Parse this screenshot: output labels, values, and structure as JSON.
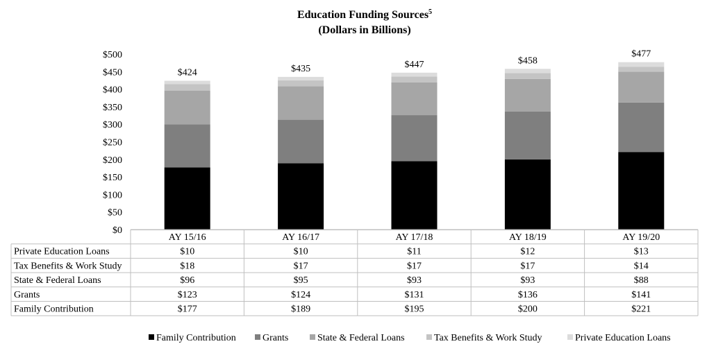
{
  "chart_data": {
    "type": "bar",
    "stacked": true,
    "title": "Education Funding Sources",
    "title_superscript": "5",
    "subtitle": "(Dollars in Billions)",
    "categories": [
      "AY 15/16",
      "AY 16/17",
      "AY 17/18",
      "AY 18/19",
      "AY 19/20"
    ],
    "ylim": [
      0,
      500
    ],
    "yticks": [
      0,
      50,
      100,
      150,
      200,
      250,
      300,
      350,
      400,
      450,
      500
    ],
    "ytick_labels": [
      "$0",
      "$50",
      "$100",
      "$150",
      "$200",
      "$250",
      "$300",
      "$350",
      "$400",
      "$450",
      "$500"
    ],
    "totals": [
      424,
      435,
      447,
      458,
      477
    ],
    "total_labels": [
      "$424",
      "$435",
      "$447",
      "$458",
      "$477"
    ],
    "grid": false,
    "legend_position": "bottom",
    "series": [
      {
        "name": "Family Contribution",
        "color": "#000000",
        "values": [
          177,
          189,
          195,
          200,
          221
        ],
        "labels": [
          "$177",
          "$189",
          "$195",
          "$200",
          "$221"
        ]
      },
      {
        "name": "Grants",
        "color": "#7f7f7f",
        "values": [
          123,
          124,
          131,
          136,
          141
        ],
        "labels": [
          "$123",
          "$124",
          "$131",
          "$136",
          "$141"
        ]
      },
      {
        "name": "State & Federal Loans",
        "color": "#a6a6a6",
        "values": [
          96,
          95,
          93,
          93,
          88
        ],
        "labels": [
          "$96",
          "$95",
          "$93",
          "$93",
          "$88"
        ]
      },
      {
        "name": "Tax Benefits & Work Study",
        "color": "#c4c4c4",
        "values": [
          18,
          17,
          17,
          17,
          14
        ],
        "labels": [
          "$18",
          "$17",
          "$17",
          "$17",
          "$14"
        ]
      },
      {
        "name": "Private Education Loans",
        "color": "#dcdcdc",
        "values": [
          10,
          10,
          11,
          12,
          13
        ],
        "labels": [
          "$10",
          "$10",
          "$11",
          "$12",
          "$13"
        ]
      }
    ],
    "table_row_order": [
      "Private Education Loans",
      "Tax Benefits & Work Study",
      "State & Federal Loans",
      "Grants",
      "Family Contribution"
    ]
  }
}
